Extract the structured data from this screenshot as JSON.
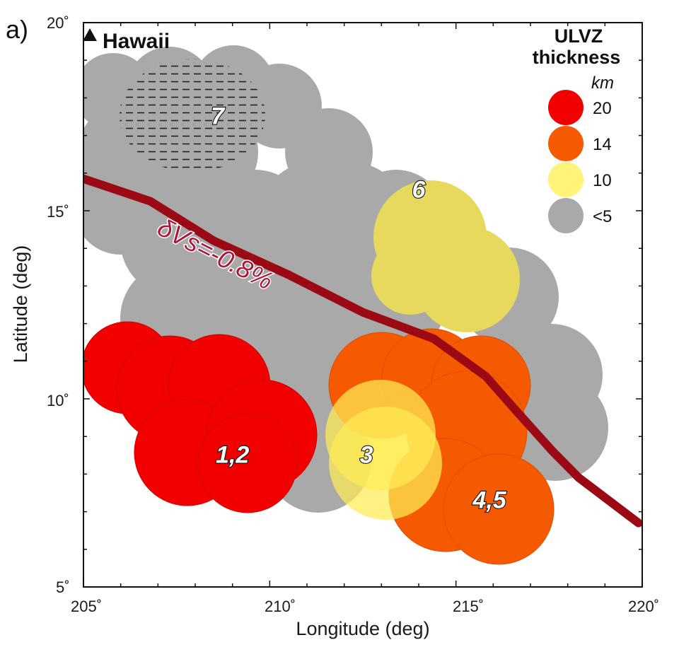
{
  "panel_label": "a)",
  "axes": {
    "xlabel": "Longitude (deg)",
    "ylabel": "Latitude (deg)",
    "xlim": [
      205,
      220
    ],
    "ylim": [
      5,
      20
    ],
    "x_ticks": [
      "205˚",
      "210˚",
      "215˚",
      "220˚"
    ],
    "y_ticks": [
      "5˚",
      "10˚",
      "15˚",
      "20˚"
    ]
  },
  "marker": {
    "label": "Hawaii",
    "icon": "triangle-icon",
    "lon": 205.2,
    "lat": 19.5
  },
  "legend": {
    "title_line1": "ULVZ",
    "title_line2": "thickness",
    "unit": "km",
    "items": [
      {
        "label": "20",
        "color": "#f20000"
      },
      {
        "label": "14",
        "color": "#f55a00"
      },
      {
        "label": "10",
        "color": "#fff37a"
      },
      {
        "label": "<5",
        "color": "#a9a9a9"
      }
    ]
  },
  "contour": {
    "label": "δVs=-0.8%",
    "color": "#9b0a14",
    "points": [
      [
        205,
        15.85
      ],
      [
        206.8,
        15.25
      ],
      [
        208.5,
        14.2
      ],
      [
        210.5,
        13.3
      ],
      [
        212.5,
        12.3
      ],
      [
        214.4,
        11.6
      ],
      [
        215.8,
        10.6
      ],
      [
        216.6,
        9.7
      ],
      [
        217.6,
        8.6
      ],
      [
        218.3,
        7.9
      ],
      [
        219.9,
        6.7
      ]
    ]
  },
  "chart_data": {
    "type": "map",
    "xlabel": "Longitude (deg)",
    "ylabel": "Latitude (deg)",
    "xlim": [
      205,
      220
    ],
    "ylim": [
      5,
      20
    ],
    "regions": [
      {
        "label": "7",
        "thickness": "<5",
        "hatched": true,
        "lon": 208.6,
        "lat": 17.3
      },
      {
        "label": "6",
        "thickness": "10",
        "lon": 214.0,
        "lat": 15.35
      },
      {
        "label": "1,2",
        "thickness": "20",
        "lon": 209.0,
        "lat": 8.3
      },
      {
        "label": "3",
        "thickness": "10",
        "lon": 212.6,
        "lat": 8.3
      },
      {
        "label": "4,5",
        "thickness": "14",
        "lon": 215.9,
        "lat": 7.1
      }
    ]
  }
}
